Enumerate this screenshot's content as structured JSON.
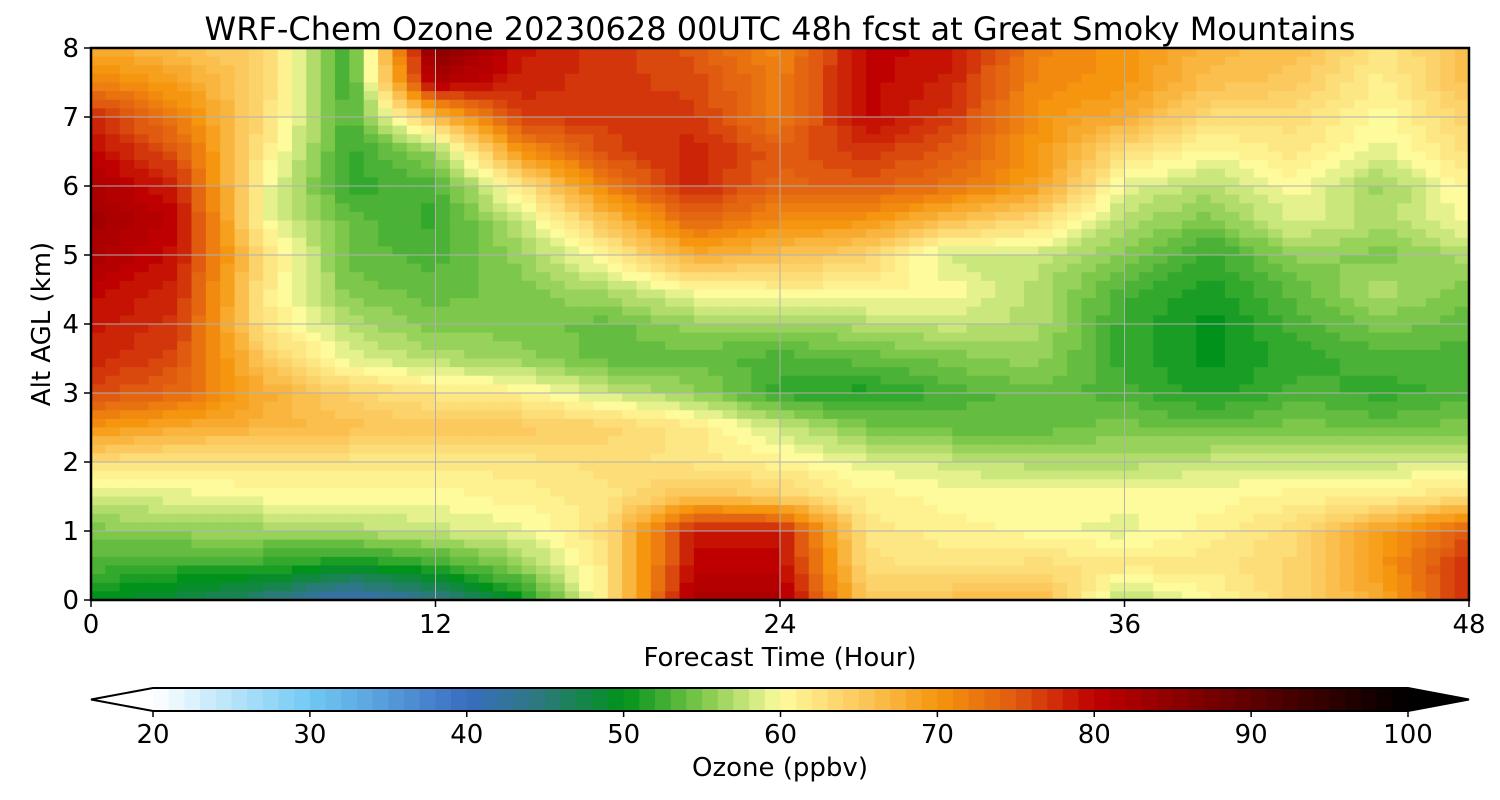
{
  "chart_data": {
    "type": "heatmap",
    "title": "WRF-Chem Ozone  20230628 00UTC 48h fcst at Great Smoky Mountains",
    "xlabel": "Forecast Time (Hour)",
    "ylabel": "Alt AGL (km)",
    "xlim": [
      0,
      48
    ],
    "ylim": [
      0,
      8
    ],
    "xticks": [
      0,
      12,
      24,
      36,
      48
    ],
    "yticks": [
      0,
      1,
      2,
      3,
      4,
      5,
      6,
      7,
      8
    ],
    "grid": true,
    "x": [
      0,
      3,
      6,
      9,
      12,
      15,
      18,
      21,
      24,
      27,
      30,
      33,
      36,
      39,
      42,
      45,
      48
    ],
    "y": [
      0,
      0.5,
      1,
      1.5,
      2,
      2.5,
      3,
      3.5,
      4,
      4.5,
      5,
      5.5,
      6,
      6.5,
      7,
      7.5,
      8
    ],
    "z": [
      [
        50,
        48,
        45,
        40,
        44,
        50,
        62,
        82,
        82,
        65,
        66,
        67,
        57,
        60,
        64,
        68,
        78
      ],
      [
        53,
        52,
        52,
        50,
        52,
        56,
        62,
        80,
        80,
        63,
        62,
        63,
        62,
        62,
        64,
        70,
        78
      ],
      [
        55,
        56,
        56,
        57,
        58,
        59,
        63,
        79,
        79,
        62,
        61,
        60,
        59,
        61,
        63,
        69,
        75
      ],
      [
        58,
        59,
        60,
        60,
        60,
        61,
        62,
        66,
        64,
        61,
        60,
        60,
        60,
        60,
        61,
        61,
        63
      ],
      [
        63,
        62,
        62,
        62,
        62,
        62,
        63,
        62,
        61,
        59,
        58,
        57,
        57,
        58,
        58,
        58,
        59
      ],
      [
        70,
        68,
        67,
        66,
        65,
        65,
        64,
        62,
        58,
        55,
        54,
        54,
        55,
        54,
        55,
        54,
        55
      ],
      [
        76,
        74,
        68,
        64,
        62,
        61,
        58,
        56,
        52,
        51,
        53,
        54,
        53,
        51,
        53,
        52,
        53
      ],
      [
        78,
        76,
        65,
        59,
        57,
        56,
        54,
        54,
        53,
        54,
        55,
        56,
        52,
        50,
        52,
        53,
        53
      ],
      [
        79,
        77,
        62,
        57,
        55,
        55,
        54,
        56,
        56,
        57,
        58,
        57,
        52,
        50,
        53,
        55,
        54
      ],
      [
        80,
        78,
        62,
        55,
        54,
        55,
        57,
        60,
        61,
        61,
        60,
        57,
        53,
        51,
        54,
        57,
        55
      ],
      [
        82,
        79,
        63,
        54,
        53,
        56,
        61,
        68,
        66,
        64,
        58,
        58,
        55,
        52,
        56,
        55,
        57
      ],
      [
        83,
        80,
        60,
        54,
        52,
        58,
        66,
        74,
        71,
        70,
        66,
        63,
        57,
        55,
        59,
        57,
        60
      ],
      [
        82,
        78,
        60,
        52,
        53,
        62,
        72,
        78,
        74,
        75,
        73,
        69,
        59,
        57,
        60,
        56,
        61
      ],
      [
        80,
        75,
        62,
        52,
        56,
        70,
        76,
        78,
        75,
        77,
        75,
        70,
        63,
        60,
        62,
        59,
        63
      ],
      [
        78,
        72,
        63,
        53,
        66,
        77,
        77,
        77,
        72,
        80,
        77,
        70,
        68,
        63,
        63,
        60,
        64
      ],
      [
        72,
        69,
        64,
        52,
        82,
        78,
        77,
        76,
        72,
        80,
        78,
        71,
        70,
        66,
        65,
        61,
        66
      ],
      [
        68,
        66,
        64,
        52,
        86,
        79,
        77,
        75,
        71,
        80,
        79,
        72,
        70,
        67,
        66,
        62,
        66
      ]
    ],
    "colorbar": {
      "label": "Ozone  (ppbv)",
      "min": 20,
      "max": 100,
      "ticks": [
        20,
        30,
        40,
        50,
        60,
        70,
        80,
        90,
        100
      ],
      "extend": "both",
      "orientation": "horizontal",
      "colormap": [
        [
          20,
          "#ffffff"
        ],
        [
          30,
          "#71c9f4"
        ],
        [
          40,
          "#3a6dc0"
        ],
        [
          45,
          "#2a7a78"
        ],
        [
          50,
          "#00921a"
        ],
        [
          55,
          "#7dc84a"
        ],
        [
          60,
          "#fefb9d"
        ],
        [
          65,
          "#fcc95e"
        ],
        [
          70,
          "#f5960e"
        ],
        [
          75,
          "#e05a10"
        ],
        [
          80,
          "#bf0000"
        ],
        [
          90,
          "#5e0000"
        ],
        [
          100,
          "#000000"
        ]
      ]
    }
  }
}
